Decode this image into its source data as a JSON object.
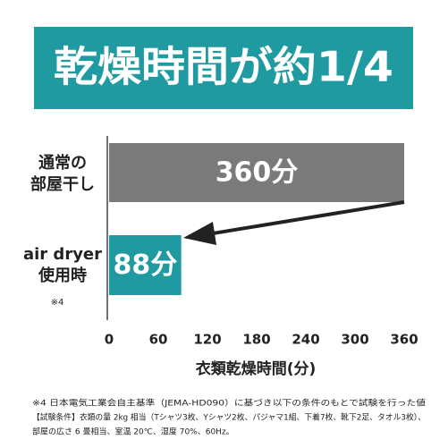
{
  "chart_data": {
    "type": "hbar",
    "title": "乾燥時間が約1/4",
    "title_color": "#1f9aa0",
    "categories": [
      [
        "通常の",
        "部屋干し"
      ],
      [
        "air dryer",
        "使用時"
      ]
    ],
    "category_note": "※4",
    "values": [
      360,
      88
    ],
    "value_labels": [
      "360分",
      "88分"
    ],
    "colors": [
      "#7a7a7a",
      "#1f9aa0"
    ],
    "xlim": [
      0,
      360
    ],
    "xticks": [
      0,
      60,
      120,
      180,
      240,
      300,
      360
    ],
    "xlabel": "衣類乾燥時間(分)",
    "footnotes": [
      "※4 日本電気工業会自主基準（JEMA-HD090）に基づき以下の条件のもとで試験を行った値",
      "【試験条件】衣類の量 2kg 相当（Tシャツ3枚、Yシャツ2枚、パジャマ1組、下着7枚、靴下2足、タオル3枚）、",
      "部屋の広さ 6 畳相当、室温 20℃、湿度 70%、60Hz。"
    ]
  }
}
